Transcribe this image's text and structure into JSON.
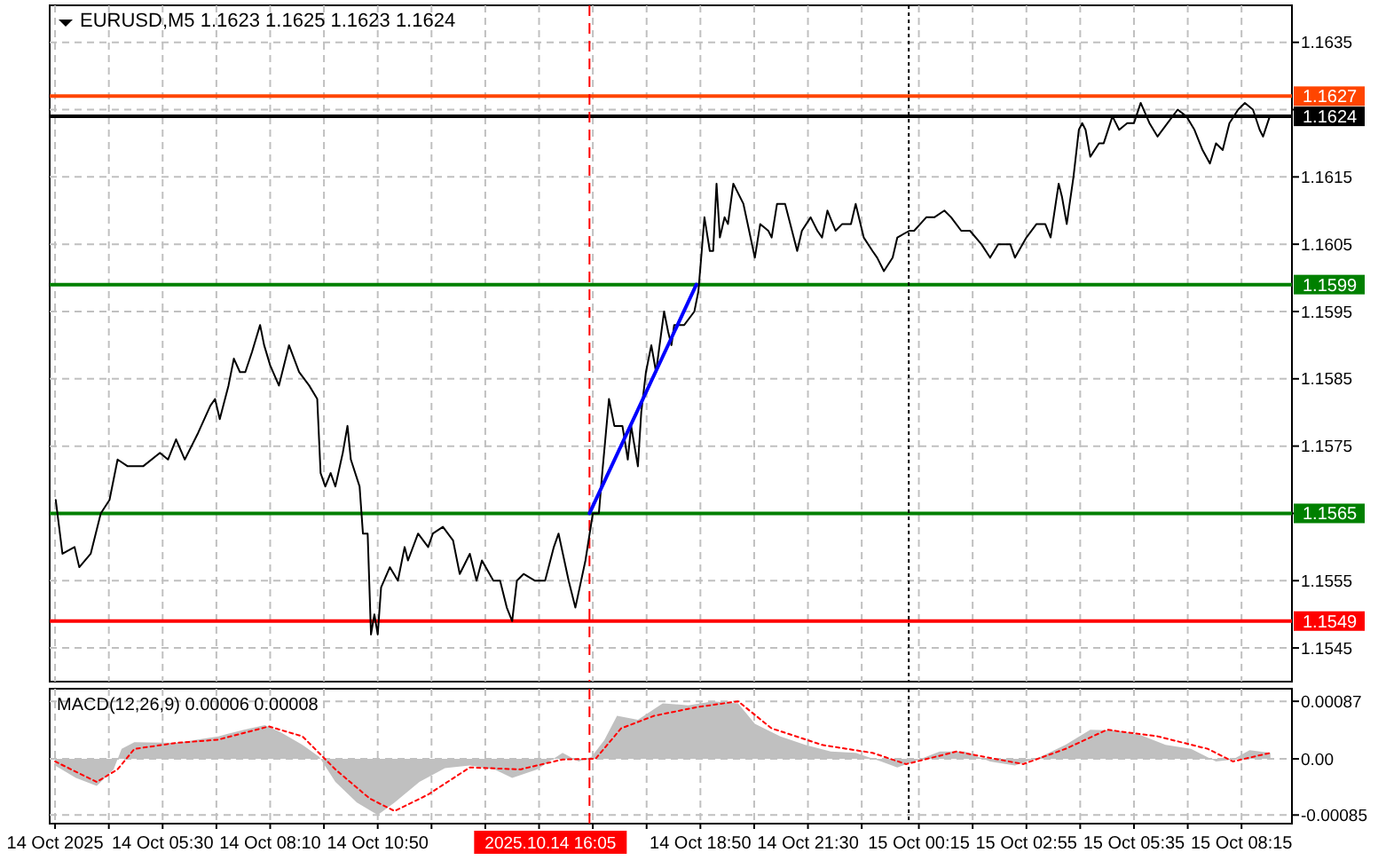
{
  "chart_data": [
    {
      "type": "line",
      "title": "EURUSD,M5 1.1623 1.1625 1.1623 1.1624",
      "xlim": [
        "2025-10-14T02:42",
        "2025-10-15T09:30"
      ],
      "ylim": [
        1.154,
        1.16405
      ],
      "grid": true,
      "tick_labels": "y",
      "xticks": [
        {
          "value": "2025-10-14T02:50",
          "label": null
        },
        {
          "value": "2025-10-14T04:10",
          "label": null
        },
        {
          "value": "2025-10-14T05:30",
          "label": null
        },
        {
          "value": "2025-10-14T06:50",
          "label": null
        },
        {
          "value": "2025-10-14T08:10",
          "label": null
        },
        {
          "value": "2025-10-14T09:30",
          "label": null
        },
        {
          "value": "2025-10-14T10:50",
          "label": null
        },
        {
          "value": "2025-10-14T12:10",
          "label": null
        },
        {
          "value": "2025-10-14T13:30",
          "label": null
        },
        {
          "value": "2025-10-14T14:50",
          "label": null
        },
        {
          "value": "2025-10-14T16:10",
          "label": null
        },
        {
          "value": "2025-10-14T17:30",
          "label": null
        },
        {
          "value": "2025-10-14T18:50",
          "label": null
        },
        {
          "value": "2025-10-14T20:10",
          "label": null
        },
        {
          "value": "2025-10-14T21:30",
          "label": null
        },
        {
          "value": "2025-10-14T22:50",
          "label": null
        },
        {
          "value": "2025-10-15T00:15",
          "label": null
        },
        {
          "value": "2025-10-15T01:35",
          "label": null
        },
        {
          "value": "2025-10-15T02:55",
          "label": null
        },
        {
          "value": "2025-10-15T04:15",
          "label": null
        },
        {
          "value": "2025-10-15T05:35",
          "label": null
        },
        {
          "value": "2025-10-15T06:55",
          "label": null
        },
        {
          "value": "2025-10-15T08:15",
          "label": null
        }
      ],
      "yticks": [
        1.1545,
        1.1555,
        1.1565,
        1.1575,
        1.1585,
        1.1595,
        1.1605,
        1.1615,
        {
          "value": 1.1625,
          "label": null
        },
        1.1635
      ],
      "x": [
        "2025-10-14T02:51",
        "2025-10-14T03:01",
        "2025-10-14T03:19",
        "2025-10-14T03:26",
        "2025-10-14T03:43",
        "2025-10-14T03:58",
        "2025-10-14T04:11",
        "2025-10-14T04:23",
        "2025-10-14T04:38",
        "2025-10-14T05:01",
        "2025-10-14T05:26",
        "2025-10-14T05:38",
        "2025-10-14T05:50",
        "2025-10-14T06:03",
        "2025-10-14T06:23",
        "2025-10-14T06:41",
        "2025-10-14T06:48",
        "2025-10-14T06:55",
        "2025-10-14T07:08",
        "2025-10-14T07:16",
        "2025-10-14T07:25",
        "2025-10-14T07:33",
        "2025-10-14T07:43",
        "2025-10-14T07:55",
        "2025-10-14T08:01",
        "2025-10-14T08:10",
        "2025-10-14T08:23",
        "2025-10-14T08:38",
        "2025-10-14T08:53",
        "2025-10-14T09:08",
        "2025-10-14T09:20",
        "2025-10-14T09:25",
        "2025-10-14T09:32",
        "2025-10-14T09:40",
        "2025-10-14T09:47",
        "2025-10-14T09:58",
        "2025-10-14T10:05",
        "2025-10-14T10:10",
        "2025-10-14T10:23",
        "2025-10-14T10:28",
        "2025-10-14T10:35",
        "2025-10-14T10:40",
        "2025-10-14T10:45",
        "2025-10-14T10:50",
        "2025-10-14T10:55",
        "2025-10-14T11:08",
        "2025-10-14T11:20",
        "2025-10-14T11:30",
        "2025-10-14T11:35",
        "2025-10-14T11:50",
        "2025-10-14T12:05",
        "2025-10-14T12:12",
        "2025-10-14T12:27",
        "2025-10-14T12:42",
        "2025-10-14T12:52",
        "2025-10-14T13:07",
        "2025-10-14T13:17",
        "2025-10-14T13:25",
        "2025-10-14T13:42",
        "2025-10-14T13:52",
        "2025-10-14T14:02",
        "2025-10-14T14:10",
        "2025-10-14T14:17",
        "2025-10-14T14:27",
        "2025-10-14T14:44",
        "2025-10-14T14:59",
        "2025-10-14T15:12",
        "2025-10-14T15:19",
        "2025-10-14T15:34",
        "2025-10-14T15:44",
        "2025-10-14T15:59",
        "2025-10-14T16:10",
        "2025-10-14T16:19",
        "2025-10-14T16:24",
        "2025-10-14T16:34",
        "2025-10-14T16:42",
        "2025-10-14T16:54",
        "2025-10-14T17:02",
        "2025-10-14T17:07",
        "2025-10-14T17:17",
        "2025-10-14T17:22",
        "2025-10-14T17:29",
        "2025-10-14T17:37",
        "2025-10-14T17:44",
        "2025-10-14T17:56",
        "2025-10-14T18:02",
        "2025-10-14T18:07",
        "2025-10-14T18:11",
        "2025-10-14T18:26",
        "2025-10-14T18:41",
        "2025-10-14T18:47",
        "2025-10-14T18:52",
        "2025-10-14T18:56",
        "2025-10-14T19:04",
        "2025-10-14T19:09",
        "2025-10-14T19:14",
        "2025-10-14T19:19",
        "2025-10-14T19:26",
        "2025-10-14T19:31",
        "2025-10-14T19:39",
        "2025-10-14T19:54",
        "2025-10-14T20:11",
        "2025-10-14T20:19",
        "2025-10-14T20:31",
        "2025-10-14T20:36",
        "2025-10-14T20:44",
        "2025-10-14T20:56",
        "2025-10-14T21:14",
        "2025-10-14T21:21",
        "2025-10-14T21:34",
        "2025-10-14T21:44",
        "2025-10-14T21:51",
        "2025-10-14T21:59",
        "2025-10-14T22:11",
        "2025-10-14T22:21",
        "2025-10-14T22:34",
        "2025-10-14T22:41",
        "2025-10-14T22:53",
        "2025-10-14T23:06",
        "2025-10-14T23:13",
        "2025-10-14T23:23",
        "2025-10-14T23:36",
        "2025-10-14T23:43",
        "2025-10-15T00:01",
        "2025-10-15T00:08",
        "2025-10-15T00:26",
        "2025-10-15T00:38",
        "2025-10-15T00:53",
        "2025-10-15T01:03",
        "2025-10-15T01:18",
        "2025-10-15T01:31",
        "2025-10-15T01:48",
        "2025-10-15T02:01",
        "2025-10-15T02:13",
        "2025-10-15T02:31",
        "2025-10-15T02:38",
        "2025-10-15T02:55",
        "2025-10-15T03:10",
        "2025-10-15T03:23",
        "2025-10-15T03:31",
        "2025-10-15T03:43",
        "2025-10-15T03:48",
        "2025-10-15T03:55",
        "2025-10-15T04:05",
        "2025-10-15T04:13",
        "2025-10-15T04:18",
        "2025-10-15T04:23",
        "2025-10-15T04:30",
        "2025-10-15T04:43",
        "2025-10-15T04:50",
        "2025-10-15T05:03",
        "2025-10-15T05:13",
        "2025-10-15T05:25",
        "2025-10-15T05:35",
        "2025-10-15T05:45",
        "2025-10-15T05:58",
        "2025-10-15T06:10",
        "2025-10-15T06:25",
        "2025-10-15T06:40",
        "2025-10-15T06:53",
        "2025-10-15T07:05",
        "2025-10-15T07:17",
        "2025-10-15T07:28",
        "2025-10-15T07:37",
        "2025-10-15T07:47",
        "2025-10-15T07:57",
        "2025-10-15T08:10",
        "2025-10-15T08:20",
        "2025-10-15T08:32",
        "2025-10-15T08:42",
        "2025-10-15T08:47",
        "2025-10-15T08:57"
      ],
      "series": [
        {
          "color": "#000000",
          "values": [
            1.1567,
            1.1559,
            1.156,
            1.1557,
            1.1559,
            1.1565,
            1.1567,
            1.1573,
            1.1572,
            1.1572,
            1.1574,
            1.1573,
            1.1576,
            1.1573,
            1.1577,
            1.1581,
            1.1582,
            1.1579,
            1.1584,
            1.1588,
            1.1586,
            1.1586,
            1.1589,
            1.1593,
            1.159,
            1.1587,
            1.1584,
            1.159,
            1.1586,
            1.1584,
            1.1582,
            1.1571,
            1.1569,
            1.1571,
            1.1569,
            1.1574,
            1.1578,
            1.1573,
            1.1569,
            1.1562,
            1.1562,
            1.1547,
            1.155,
            1.1547,
            1.1554,
            1.1557,
            1.1555,
            1.156,
            1.1558,
            1.1562,
            1.156,
            1.1562,
            1.1563,
            1.1561,
            1.1556,
            1.1559,
            1.1555,
            1.1558,
            1.1555,
            1.1555,
            1.1551,
            1.1549,
            1.1555,
            1.1556,
            1.1555,
            1.1555,
            1.156,
            1.1562,
            1.1555,
            1.1551,
            1.1558,
            1.1565,
            1.1565,
            1.1571,
            1.1582,
            1.1578,
            1.1578,
            1.1573,
            1.1578,
            1.1572,
            1.158,
            1.1586,
            1.159,
            1.1586,
            1.1595,
            1.1592,
            1.159,
            1.1593,
            1.1593,
            1.1595,
            1.1598,
            1.1604,
            1.1609,
            1.1604,
            1.1604,
            1.1614,
            1.1606,
            1.1609,
            1.1608,
            1.1614,
            1.1611,
            1.1603,
            1.1608,
            1.1607,
            1.1606,
            1.1611,
            1.1611,
            1.1604,
            1.1607,
            1.1609,
            1.1607,
            1.1606,
            1.161,
            1.1607,
            1.1608,
            1.1608,
            1.1611,
            1.1606,
            1.1604,
            1.1603,
            1.1601,
            1.1603,
            1.1606,
            1.1607,
            1.1607,
            1.1609,
            1.1609,
            1.161,
            1.1609,
            1.1607,
            1.1607,
            1.1605,
            1.1603,
            1.1605,
            1.1605,
            1.1603,
            1.1606,
            1.1608,
            1.1608,
            1.1606,
            1.1614,
            1.1612,
            1.1608,
            1.1615,
            1.1622,
            1.1623,
            1.1622,
            1.1618,
            1.162,
            1.162,
            1.1624,
            1.1622,
            1.1623,
            1.1623,
            1.1626,
            1.1623,
            1.1621,
            1.1623,
            1.1625,
            1.1624,
            1.1622,
            1.1619,
            1.1617,
            1.162,
            1.1619,
            1.1623,
            1.1625,
            1.1626,
            1.1625,
            1.1622,
            1.1621,
            1.1624
          ]
        },
        {
          "type": "line",
          "color": "#0000ff",
          "x": [
            "2025-10-14T16:05",
            "2025-10-14T18:44"
          ],
          "values": [
            1.1565,
            1.1599
          ]
        }
      ],
      "ref_lines": [
        {
          "axis": "y",
          "value": 1.1627,
          "label": "1.1627",
          "color": "#ff4500"
        },
        {
          "axis": "y",
          "value": 1.1624,
          "label": "1.1624",
          "color": "#000000"
        },
        {
          "axis": "y",
          "value": 1.1599,
          "label": "1.1599",
          "color": "#008000"
        },
        {
          "axis": "y",
          "value": 1.1565,
          "label": "1.1565",
          "color": "#008000"
        },
        {
          "axis": "y",
          "value": 1.1549,
          "label": "1.1549",
          "color": "#ff0000"
        },
        {
          "axis": "x",
          "value": "2025-10-14T16:05",
          "color": "#ff0000",
          "line_style": "dashed"
        },
        {
          "axis": "x",
          "value": "2025-10-15T00:00",
          "color": "#000000",
          "line_style": "dotted"
        }
      ]
    },
    {
      "type": "area",
      "title": "MACD(12,26,9) 0.00006 0.00008",
      "xlim": [
        "2025-10-14T02:42",
        "2025-10-15T09:30"
      ],
      "ylim": [
        -0.00098,
        0.00106
      ],
      "grid": true,
      "xticks": [
        {
          "value": "2025-10-14T02:50",
          "label": "14 Oct 2025"
        },
        {
          "value": "2025-10-14T04:10",
          "label": null
        },
        {
          "value": "2025-10-14T05:30",
          "label": "14 Oct 05:30"
        },
        {
          "value": "2025-10-14T06:50",
          "label": null
        },
        {
          "value": "2025-10-14T08:10",
          "label": "14 Oct 08:10"
        },
        {
          "value": "2025-10-14T09:30",
          "label": null
        },
        {
          "value": "2025-10-14T10:50",
          "label": "14 Oct 10:50"
        },
        {
          "value": "2025-10-14T12:10",
          "label": null
        },
        {
          "value": "2025-10-14T13:30",
          "label": null
        },
        {
          "value": "2025-10-14T14:50",
          "label": null
        },
        {
          "value": "2025-10-14T16:10",
          "label": null
        },
        {
          "value": "2025-10-14T17:30",
          "label": null
        },
        {
          "value": "2025-10-14T18:50",
          "label": "14 Oct 18:50"
        },
        {
          "value": "2025-10-14T20:10",
          "label": null
        },
        {
          "value": "2025-10-14T21:30",
          "label": "14 Oct 21:30"
        },
        {
          "value": "2025-10-14T22:50",
          "label": null
        },
        {
          "value": "2025-10-15T00:15",
          "label": "15 Oct 00:15"
        },
        {
          "value": "2025-10-15T01:35",
          "label": null
        },
        {
          "value": "2025-10-15T02:55",
          "label": "15 Oct 02:55"
        },
        {
          "value": "2025-10-15T04:15",
          "label": null
        },
        {
          "value": "2025-10-15T05:35",
          "label": "15 Oct 05:35"
        },
        {
          "value": "2025-10-15T06:55",
          "label": null
        },
        {
          "value": "2025-10-15T08:15",
          "label": "15 Oct 08:15"
        }
      ],
      "yticks": [
        -0.00085,
        {
          "value": 0,
          "label": "0.00"
        },
        0.00087
      ],
      "series": [
        {
          "color": "#c0c0c0",
          "x": [
            "2025-10-14T02:50",
            "2025-10-14T03:21",
            "2025-10-14T03:52",
            "2025-10-14T04:17",
            "2025-10-14T04:29",
            "2025-10-14T04:48",
            "2025-10-14T05:50",
            "2025-10-14T06:53",
            "2025-10-14T07:31",
            "2025-10-14T08:02",
            "2025-10-14T08:26",
            "2025-10-14T08:58",
            "2025-10-14T09:23",
            "2025-10-14T09:47",
            "2025-10-14T10:19",
            "2025-10-14T10:50",
            "2025-10-14T11:15",
            "2025-10-14T11:52",
            "2025-10-14T12:30",
            "2025-10-14T13:07",
            "2025-10-14T13:44",
            "2025-10-14T14:10",
            "2025-10-14T14:47",
            "2025-10-14T15:25",
            "2025-10-14T15:49",
            "2025-10-14T16:08",
            "2025-10-14T16:27",
            "2025-10-14T16:46",
            "2025-10-14T17:17",
            "2025-10-14T17:54",
            "2025-10-14T18:32",
            "2025-10-14T19:09",
            "2025-10-14T19:46",
            "2025-10-14T20:11",
            "2025-10-14T20:49",
            "2025-10-14T21:26",
            "2025-10-14T22:04",
            "2025-10-14T22:41",
            "2025-10-14T23:19",
            "2025-10-14T23:43",
            "2025-10-15T00:08",
            "2025-10-15T00:46",
            "2025-10-15T01:23",
            "2025-10-15T02:01",
            "2025-10-15T02:38",
            "2025-10-15T03:16",
            "2025-10-15T03:53",
            "2025-10-15T04:30",
            "2025-10-15T05:08",
            "2025-10-15T05:45",
            "2025-10-15T06:22",
            "2025-10-15T07:00",
            "2025-10-15T07:37",
            "2025-10-15T08:02",
            "2025-10-15T08:27",
            "2025-10-15T08:58"
          ],
          "values": [
            -0.0001,
            -0.00029,
            -0.00041,
            -0.00016,
            0.00015,
            0.00025,
            0.00024,
            0.00034,
            0.00044,
            0.00051,
            0.0004,
            0.00021,
            3e-05,
            -0.00035,
            -0.00066,
            -0.00085,
            -0.00066,
            -0.00035,
            -0.00014,
            -0.0001,
            -0.00016,
            -0.00029,
            -0.00016,
            9e-05,
            -4e-05,
            3e-05,
            0.00028,
            0.00065,
            0.00059,
            0.00084,
            0.00081,
            0.00087,
            0.00084,
            0.00053,
            0.00034,
            0.00021,
            0.00011,
            9e-05,
            -4e-05,
            -0.00013,
            -4e-05,
            0.00011,
            0.00011,
            -4e-05,
            -0.0001,
            3e-05,
            0.00021,
            0.00044,
            0.00043,
            0.00036,
            0.00021,
            0.00015,
            -4e-05,
            -1e-05,
            0.00013,
            9e-05
          ]
        },
        {
          "type": "line",
          "color": "#ff0000",
          "line_style": "dotted",
          "x": [
            "2025-10-14T02:50",
            "2025-10-14T03:52",
            "2025-10-14T04:23",
            "2025-10-14T04:48",
            "2025-10-14T05:50",
            "2025-10-14T06:53",
            "2025-10-14T08:08",
            "2025-10-14T08:58",
            "2025-10-14T09:47",
            "2025-10-14T10:38",
            "2025-10-14T11:15",
            "2025-10-14T12:05",
            "2025-10-14T13:07",
            "2025-10-14T14:22",
            "2025-10-14T15:25",
            "2025-10-14T16:14",
            "2025-10-14T16:52",
            "2025-10-14T17:41",
            "2025-10-14T18:44",
            "2025-10-14T19:46",
            "2025-10-14T20:36",
            "2025-10-14T21:51",
            "2025-10-14T23:06",
            "2025-10-14T23:56",
            "2025-10-15T01:11",
            "2025-10-15T02:50",
            "2025-10-15T03:53",
            "2025-10-15T04:55",
            "2025-10-15T06:10",
            "2025-10-15T07:25",
            "2025-10-15T08:02",
            "2025-10-15T08:58"
          ],
          "values": [
            -4e-05,
            -0.00035,
            -0.00016,
            0.00015,
            0.00024,
            0.00029,
            0.00049,
            0.00034,
            -0.00016,
            -0.0006,
            -0.00079,
            -0.00054,
            -0.00013,
            -0.00016,
            -1e-05,
            0,
            0.00046,
            0.00065,
            0.00078,
            0.00087,
            0.00046,
            0.00021,
            9e-05,
            -8e-05,
            0.00011,
            -8e-05,
            0.00015,
            0.00044,
            0.00034,
            0.00015,
            -4e-05,
            9e-05
          ]
        }
      ],
      "ref_lines": [
        {
          "axis": "x",
          "value": "2025-10-14T16:05",
          "label": "2025.10.14 16:05",
          "color": "#ff0000",
          "line_style": "dashed"
        },
        {
          "axis": "x",
          "value": "2025-10-15T00:00",
          "color": "#000000",
          "line_style": "dotted"
        }
      ]
    }
  ]
}
